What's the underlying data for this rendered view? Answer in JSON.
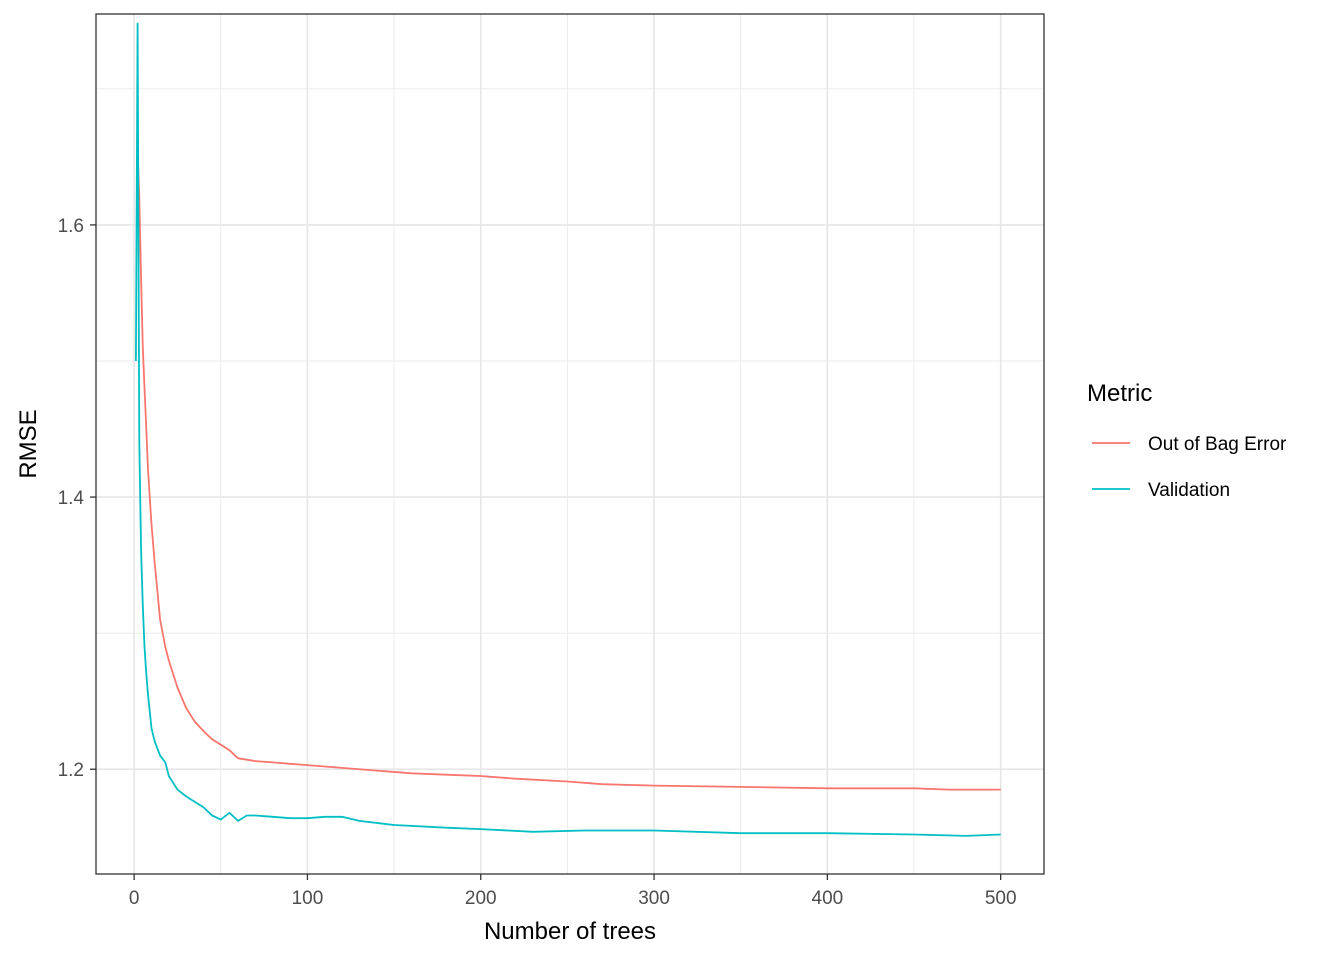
{
  "chart_data": {
    "type": "line",
    "title": "",
    "xlabel": "Number of trees",
    "ylabel": "RMSE",
    "xlim": [
      -22,
      525
    ],
    "ylim": [
      1.123,
      1.755
    ],
    "x_ticks": [
      0,
      100,
      200,
      300,
      400,
      500
    ],
    "x_tick_labels": [
      "0",
      "100",
      "200",
      "300",
      "400",
      "500"
    ],
    "y_ticks": [
      1.2,
      1.4,
      1.6
    ],
    "y_tick_labels": [
      "1.2",
      "1.4",
      "1.6"
    ],
    "x_minor_ticks": [
      50,
      150,
      250,
      350,
      450
    ],
    "y_minor_ticks": [
      1.3,
      1.5,
      1.7
    ],
    "grid": true,
    "legend": {
      "title": "Metric",
      "position": "right"
    },
    "series": [
      {
        "name": "Out of Bag Error",
        "color": "#F8766D",
        "x": [
          2,
          3,
          4,
          5,
          6,
          7,
          8,
          10,
          12,
          15,
          18,
          20,
          25,
          30,
          35,
          40,
          45,
          50,
          55,
          60,
          65,
          70,
          80,
          90,
          100,
          110,
          120,
          140,
          160,
          180,
          200,
          220,
          250,
          270,
          300,
          350,
          400,
          450,
          470,
          500
        ],
        "y": [
          1.655,
          1.62,
          1.56,
          1.51,
          1.48,
          1.45,
          1.42,
          1.38,
          1.35,
          1.31,
          1.29,
          1.28,
          1.26,
          1.245,
          1.235,
          1.228,
          1.222,
          1.218,
          1.214,
          1.208,
          1.207,
          1.206,
          1.205,
          1.204,
          1.203,
          1.202,
          1.201,
          1.199,
          1.197,
          1.196,
          1.195,
          1.193,
          1.191,
          1.189,
          1.188,
          1.187,
          1.186,
          1.186,
          1.185,
          1.185
        ]
      },
      {
        "name": "Validation",
        "color": "#00BFC4",
        "x": [
          1,
          2,
          3,
          4,
          5,
          6,
          7,
          8,
          10,
          12,
          15,
          18,
          20,
          25,
          30,
          35,
          40,
          45,
          50,
          55,
          60,
          65,
          70,
          80,
          90,
          100,
          110,
          120,
          130,
          150,
          180,
          200,
          230,
          260,
          300,
          350,
          400,
          450,
          480,
          500
        ],
        "y": [
          1.5,
          1.748,
          1.44,
          1.36,
          1.32,
          1.29,
          1.27,
          1.255,
          1.23,
          1.22,
          1.21,
          1.205,
          1.195,
          1.185,
          1.18,
          1.176,
          1.172,
          1.166,
          1.163,
          1.168,
          1.162,
          1.166,
          1.166,
          1.165,
          1.164,
          1.164,
          1.165,
          1.165,
          1.162,
          1.159,
          1.157,
          1.156,
          1.154,
          1.155,
          1.155,
          1.153,
          1.153,
          1.152,
          1.151,
          1.152
        ]
      }
    ]
  }
}
